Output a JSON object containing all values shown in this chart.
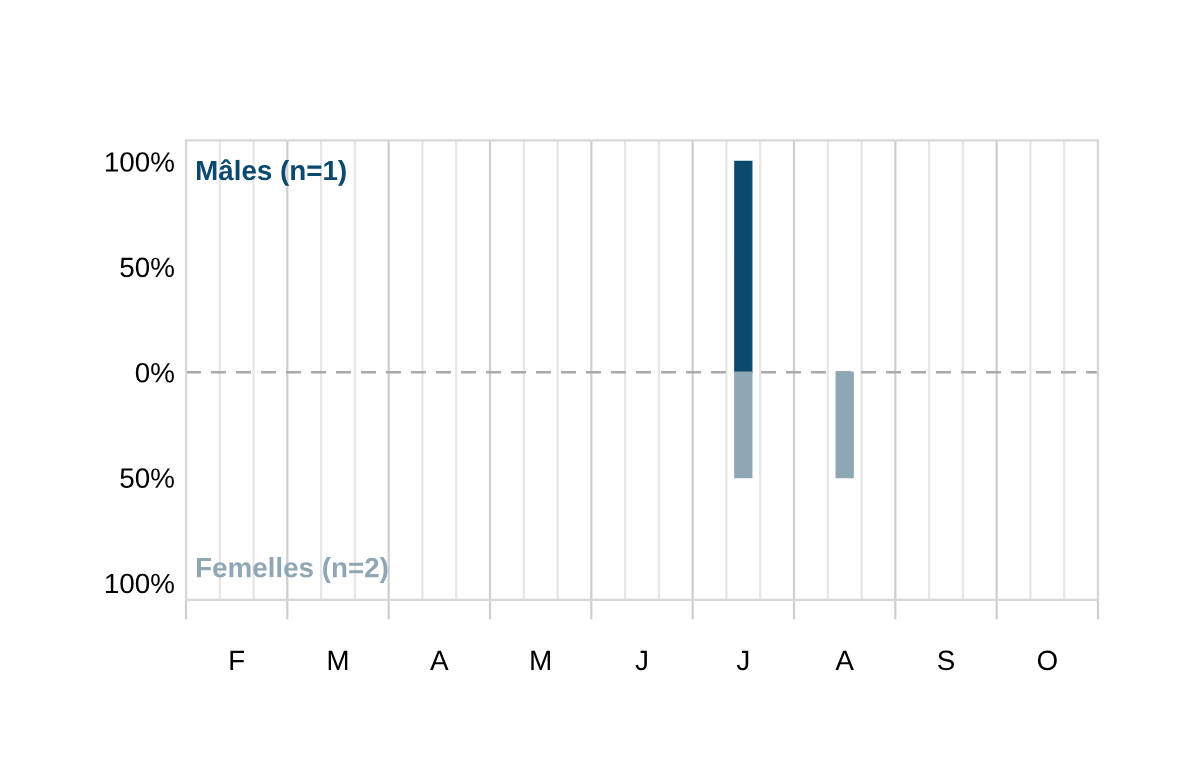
{
  "chart_data": {
    "type": "bar",
    "categories": [
      null,
      "F",
      null,
      null,
      "M",
      null,
      null,
      "A",
      null,
      null,
      "M",
      null,
      null,
      "J",
      null,
      null,
      "J",
      null,
      null,
      "A",
      null,
      null,
      "S",
      null,
      null,
      "O",
      null
    ],
    "series": [
      {
        "name": "Mâles (n=1)",
        "color": "#0b4a6e",
        "values": [
          null,
          null,
          null,
          null,
          null,
          null,
          null,
          null,
          null,
          null,
          null,
          null,
          null,
          null,
          null,
          null,
          100,
          null,
          null,
          null,
          null,
          null,
          null,
          null,
          null,
          null,
          null
        ]
      },
      {
        "name": "Femelles (n=2)",
        "color": "#8fa6b4",
        "values": [
          null,
          null,
          null,
          null,
          null,
          null,
          null,
          null,
          null,
          null,
          null,
          null,
          null,
          null,
          null,
          null,
          -50,
          null,
          null,
          -50,
          null,
          null,
          null,
          null,
          null,
          null,
          null
        ]
      }
    ],
    "ylim": [
      -108,
      110
    ],
    "yticks": [
      {
        "value": 100,
        "label": "100%"
      },
      {
        "value": 50,
        "label": "50%"
      },
      {
        "value": 0,
        "label": "0%"
      },
      {
        "value": -50,
        "label": "50%"
      },
      {
        "value": -100,
        "label": "100%"
      }
    ],
    "ref_lines": [
      {
        "axis": "y",
        "value": 0,
        "color": "#aaaaaa",
        "line_style": "dashed"
      }
    ],
    "grid": "x",
    "legend": false
  }
}
